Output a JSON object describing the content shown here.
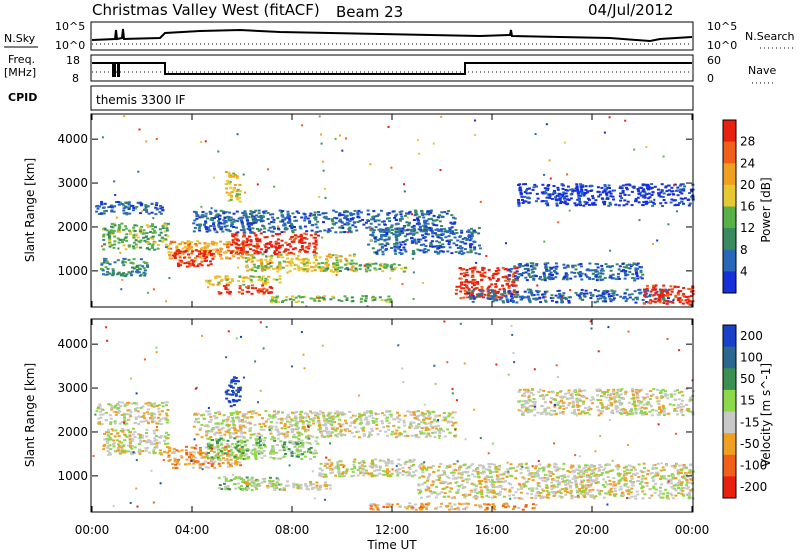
{
  "header": {
    "station": "Christmas Valley West (fitACF)",
    "beam": "Beam 23",
    "date": "04/Jul/2012",
    "mode": "themis 3300 IF",
    "cpid_label": "CPID"
  },
  "status_panels": {
    "nsky_label": "N.Sky",
    "nsearch_label": "N.Search",
    "freq_label": "Freq.",
    "freq_unit": "[MHz]",
    "nave_label": "Nave",
    "left_ticks_top": [
      "10^5",
      "10^0"
    ],
    "right_ticks_top": [
      "10^5",
      "10^0"
    ],
    "left_ticks_freq": [
      "18",
      "8"
    ],
    "right_ticks_freq": [
      "60",
      "0"
    ]
  },
  "x_axis": {
    "label": "Time UT",
    "ticks": [
      "00:00",
      "04:00",
      "08:00",
      "12:00",
      "16:00",
      "20:00",
      "00:00"
    ]
  },
  "colors": {
    "power_scale": [
      "#1530d8",
      "#2868b8",
      "#3a8a60",
      "#58b048",
      "#e8c830",
      "#f0a020",
      "#f06018",
      "#e82010"
    ],
    "velocity_scale": [
      "#1840c8",
      "#2a6890",
      "#3a9050",
      "#8cd848",
      "#c8c8c8",
      "#f0a020",
      "#f06018",
      "#e82010"
    ]
  },
  "chart_data": [
    {
      "type": "heatmap",
      "name": "power",
      "ylabel": "Slant Range [km]",
      "yticks": [
        "1000",
        "2000",
        "3000",
        "4000"
      ],
      "ylim": [
        200,
        4550
      ],
      "xlim": [
        0,
        24
      ],
      "colorbar_label": "Power [dB]",
      "colorbar_ticks": [
        "4",
        "8",
        "12",
        "16",
        "20",
        "24",
        "28"
      ],
      "regions": [
        {
          "t0": 0.1,
          "t1": 2.8,
          "r0": 2300,
          "r1": 2600,
          "level": 1
        },
        {
          "t0": 0.4,
          "t1": 3.0,
          "r0": 1500,
          "r1": 2100,
          "level": 3
        },
        {
          "t0": 0.3,
          "t1": 2.2,
          "r0": 900,
          "r1": 1300,
          "level": 2
        },
        {
          "t0": 3.0,
          "t1": 6.0,
          "r0": 1300,
          "r1": 1700,
          "level": 5
        },
        {
          "t0": 3.2,
          "t1": 4.8,
          "r0": 1100,
          "r1": 1500,
          "level": 7
        },
        {
          "t0": 4.5,
          "t1": 7.5,
          "r0": 700,
          "r1": 900,
          "level": 4
        },
        {
          "t0": 5.0,
          "t1": 7.2,
          "r0": 500,
          "r1": 700,
          "level": 7
        },
        {
          "t0": 5.5,
          "t1": 9.0,
          "r0": 1400,
          "r1": 1900,
          "level": 7
        },
        {
          "t0": 6.0,
          "t1": 10.5,
          "r0": 1000,
          "r1": 1400,
          "level": 4
        },
        {
          "t0": 9.0,
          "t1": 12.5,
          "r0": 1000,
          "r1": 1200,
          "level": 3
        },
        {
          "t0": 4.0,
          "t1": 14.5,
          "r0": 1900,
          "r1": 2400,
          "level": 1
        },
        {
          "t0": 11.0,
          "t1": 15.5,
          "r0": 1400,
          "r1": 2000,
          "level": 1
        },
        {
          "t0": 14.5,
          "t1": 17.0,
          "r0": 400,
          "r1": 1100,
          "level": 7
        },
        {
          "t0": 16.5,
          "t1": 22.0,
          "r0": 800,
          "r1": 1200,
          "level": 1
        },
        {
          "t0": 15.0,
          "t1": 23.0,
          "r0": 300,
          "r1": 600,
          "level": 1
        },
        {
          "t0": 22.0,
          "t1": 24.0,
          "r0": 250,
          "r1": 700,
          "level": 7
        },
        {
          "t0": 17.0,
          "t1": 24.0,
          "r0": 2500,
          "r1": 3000,
          "level": 0
        },
        {
          "t0": 7.0,
          "t1": 12.0,
          "r0": 300,
          "r1": 450,
          "level": 3
        },
        {
          "t0": 5.3,
          "t1": 5.9,
          "r0": 2600,
          "r1": 3300,
          "level": 4
        }
      ]
    },
    {
      "type": "heatmap",
      "name": "velocity",
      "ylabel": "Slant Range [km]",
      "yticks": [
        "1000",
        "2000",
        "3000",
        "4000"
      ],
      "ylim": [
        200,
        4550
      ],
      "xlim": [
        0,
        24
      ],
      "colorbar_label": "Velocity [m s^-1]",
      "colorbar_ticks": [
        "200",
        "100",
        "50",
        "15",
        "-15",
        "-50",
        "-100",
        "-200"
      ],
      "regions": [
        {
          "t0": 0.1,
          "t1": 3.0,
          "r0": 2200,
          "r1": 2700,
          "level": 4
        },
        {
          "t0": 0.4,
          "t1": 3.0,
          "r0": 1500,
          "r1": 2100,
          "level": 4
        },
        {
          "t0": 3.0,
          "t1": 6.0,
          "r0": 1200,
          "r1": 1700,
          "level": 5
        },
        {
          "t0": 4.5,
          "t1": 9.0,
          "r0": 1400,
          "r1": 1900,
          "level": 3
        },
        {
          "t0": 5.0,
          "t1": 7.5,
          "r0": 700,
          "r1": 1000,
          "level": 3
        },
        {
          "t0": 6.0,
          "t1": 9.5,
          "r0": 700,
          "r1": 900,
          "level": 4
        },
        {
          "t0": 4.0,
          "t1": 14.5,
          "r0": 1900,
          "r1": 2500,
          "level": 4
        },
        {
          "t0": 9.0,
          "t1": 13.0,
          "r0": 1000,
          "r1": 1400,
          "level": 4
        },
        {
          "t0": 13.0,
          "t1": 24.0,
          "r0": 500,
          "r1": 1300,
          "level": 4
        },
        {
          "t0": 11.0,
          "t1": 18.0,
          "r0": 250,
          "r1": 400,
          "level": 5
        },
        {
          "t0": 17.0,
          "t1": 24.0,
          "r0": 2400,
          "r1": 3000,
          "level": 4
        },
        {
          "t0": 5.3,
          "t1": 5.9,
          "r0": 2600,
          "r1": 3300,
          "level": 0
        }
      ]
    }
  ]
}
